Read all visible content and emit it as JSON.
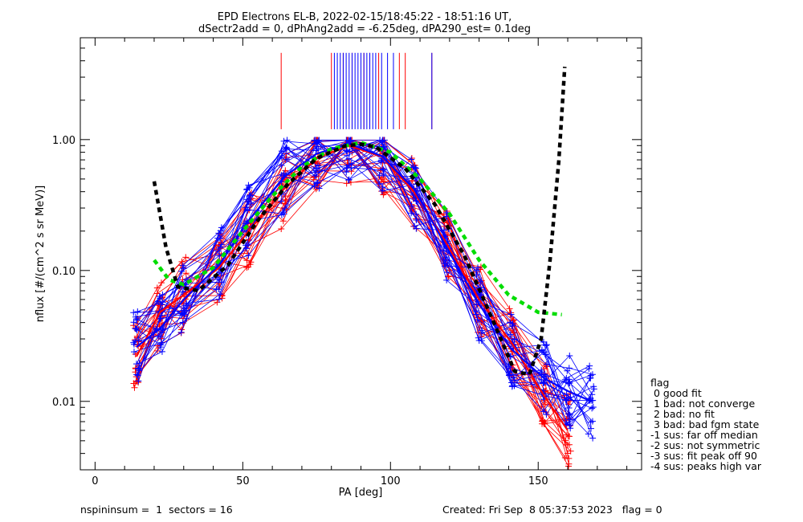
{
  "chart_data": {
    "type": "line",
    "title_line1": "EPD Electrons EL-B, 2022-02-15/18:45:22 - 18:51:16 UT,",
    "title_line2": "dSectr2add = 0, dPhAng2add = -6.25deg, dPA290_est=   0.1deg",
    "xlabel": "PA [deg]",
    "ylabel": "nflux [#/(cm^2 s sr MeV)]",
    "xlim": [
      -5,
      185
    ],
    "ylim": [
      0.003,
      6
    ],
    "yscale": "log",
    "x_ticks": [
      0,
      50,
      100,
      150
    ],
    "x_tick_labels": [
      "0",
      "50",
      "100",
      "150"
    ],
    "y_ticks": [
      0.01,
      0.1,
      1.0
    ],
    "y_tick_labels": [
      "0.01",
      "0.10",
      "1.00"
    ],
    "series": [
      {
        "color": "#ff0000",
        "x": [
          14,
          22,
          30,
          42,
          52,
          64,
          75,
          86,
          97,
          108,
          119,
          130,
          141,
          152,
          160
        ],
        "y": [
          0.022,
          0.048,
          0.065,
          0.105,
          0.2,
          0.42,
          0.72,
          0.9,
          0.74,
          0.4,
          0.16,
          0.06,
          0.028,
          0.011,
          0.006
        ]
      },
      {
        "color": "#0000ff",
        "x": [
          14,
          22,
          30,
          42,
          52,
          64,
          75,
          86,
          97,
          108,
          119,
          130,
          141,
          152,
          160,
          168
        ],
        "y": [
          0.026,
          0.036,
          0.06,
          0.11,
          0.24,
          0.52,
          0.78,
          0.93,
          0.75,
          0.42,
          0.15,
          0.055,
          0.025,
          0.015,
          0.012,
          0.01
        ]
      },
      {
        "color": "#00dd00",
        "x": [
          20,
          25,
          30,
          40,
          50,
          60,
          70,
          80,
          90,
          100,
          110,
          120,
          130,
          140,
          150,
          158
        ],
        "y": [
          0.12,
          0.085,
          0.078,
          0.105,
          0.2,
          0.37,
          0.62,
          0.85,
          0.95,
          0.8,
          0.5,
          0.27,
          0.12,
          0.065,
          0.048,
          0.046
        ]
      },
      {
        "color": "#000000",
        "x": [
          20,
          24,
          28,
          35,
          45,
          55,
          65,
          75,
          85,
          90,
          95,
          105,
          115,
          125,
          135,
          142,
          147,
          151,
          154,
          157,
          159
        ],
        "y": [
          0.48,
          0.15,
          0.075,
          0.07,
          0.11,
          0.24,
          0.45,
          0.72,
          0.9,
          0.92,
          0.88,
          0.6,
          0.32,
          0.13,
          0.04,
          0.017,
          0.016,
          0.03,
          0.12,
          0.7,
          3.6
        ]
      }
    ],
    "red_marker_ticks_x": [
      63,
      80,
      84,
      87,
      91,
      93,
      96,
      103,
      105,
      114
    ],
    "blue_marker_ticks_x": [
      81,
      82,
      83,
      84,
      85,
      86,
      87,
      88,
      89,
      90,
      91,
      92,
      93,
      94,
      95,
      97,
      99,
      101,
      114
    ],
    "legend": {
      "title": "flag",
      "entries": [
        " 0 good fit",
        " 1 bad: not converge",
        " 2 bad: no fit",
        " 3 bad: bad fgm state",
        "-1 sus: far off median",
        "-2 sus: not symmetric",
        "-3 sus: fit peak off 90",
        "-4 sus: peaks high var"
      ]
    }
  },
  "footer": {
    "left": "nspininsum =  1  sectors = 16",
    "right": "Created: Fri Sep  8 05:37:53 2023   flag = 0"
  }
}
